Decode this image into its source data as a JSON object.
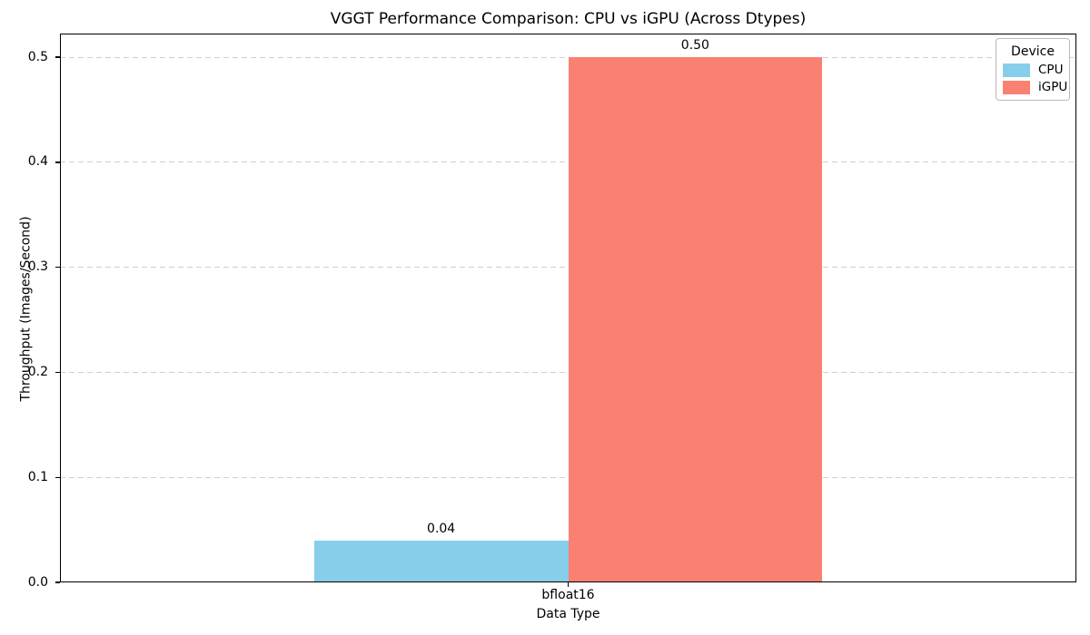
{
  "chart_data": {
    "type": "bar",
    "title": "VGGT Performance Comparison: CPU vs iGPU (Across Dtypes)",
    "xlabel": "Data Type",
    "ylabel": "Throughput (Images/Second)",
    "categories": [
      "bfloat16"
    ],
    "series": [
      {
        "name": "CPU",
        "color": "#87CEEB",
        "values": [
          0.04
        ],
        "value_labels": [
          "0.04"
        ]
      },
      {
        "name": "iGPU",
        "color": "#FA8072",
        "values": [
          0.5
        ],
        "value_labels": [
          "0.50"
        ]
      }
    ],
    "ylim": [
      0,
      0.5225
    ],
    "yticks": [
      "0.0",
      "0.1",
      "0.2",
      "0.3",
      "0.4",
      "0.5"
    ],
    "grid": {
      "axis": "y",
      "style": "dashed"
    },
    "legend": {
      "title": "Device",
      "position": "upper-right"
    }
  }
}
